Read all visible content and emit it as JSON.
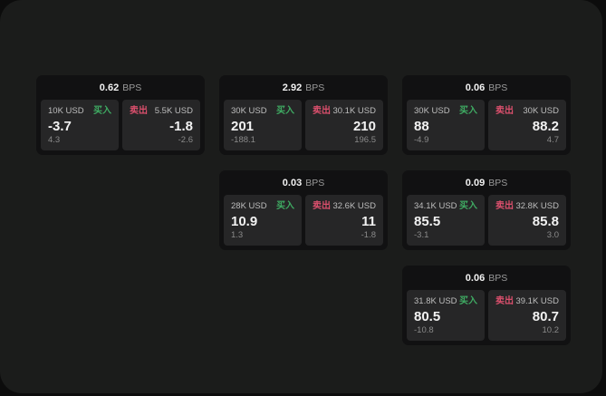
{
  "labels": {
    "bps_unit": "BPS",
    "buy": "买入",
    "sell": "卖出"
  },
  "colors": {
    "page_bg": "#0c0c0c",
    "window_bg": "#1b1c1b",
    "card_bg": "#111112",
    "panel_bg": "#262627",
    "buy_green": "#3fab63",
    "sell_red": "#d94f6c",
    "text_primary": "#f2f2f2",
    "text_size": "#bdbdbd",
    "text_muted": "#9a9a9a",
    "text_dim": "#8a8a8a"
  },
  "grid": {
    "col_lefts": [
      40,
      242,
      444
    ],
    "row_tops": [
      83,
      188,
      293
    ]
  },
  "cards": [
    {
      "bps": "0.62",
      "row": 0,
      "col": 0,
      "buy": {
        "size": "10K USD",
        "value": "-3.7",
        "delta": "4.3"
      },
      "sell": {
        "size": "5.5K USD",
        "value": "-1.8",
        "delta": "-2.6"
      }
    },
    {
      "bps": "2.92",
      "row": 0,
      "col": 1,
      "buy": {
        "size": "30K USD",
        "value": "201",
        "delta": "-188.1"
      },
      "sell": {
        "size": "30.1K USD",
        "value": "210",
        "delta": "196.5"
      }
    },
    {
      "bps": "0.06",
      "row": 0,
      "col": 2,
      "buy": {
        "size": "30K USD",
        "value": "88",
        "delta": "-4.9"
      },
      "sell": {
        "size": "30K USD",
        "value": "88.2",
        "delta": "4.7"
      }
    },
    {
      "bps": "0.03",
      "row": 1,
      "col": 1,
      "buy": {
        "size": "28K USD",
        "value": "10.9",
        "delta": "1.3"
      },
      "sell": {
        "size": "32.6K USD",
        "value": "11",
        "delta": "-1.8"
      }
    },
    {
      "bps": "0.09",
      "row": 1,
      "col": 2,
      "buy": {
        "size": "34.1K USD",
        "value": "85.5",
        "delta": "-3.1"
      },
      "sell": {
        "size": "32.8K USD",
        "value": "85.8",
        "delta": "3.0"
      }
    },
    {
      "bps": "0.06",
      "row": 2,
      "col": 2,
      "buy": {
        "size": "31.8K USD",
        "value": "80.5",
        "delta": "-10.8"
      },
      "sell": {
        "size": "39.1K USD",
        "value": "80.7",
        "delta": "10.2"
      }
    }
  ]
}
